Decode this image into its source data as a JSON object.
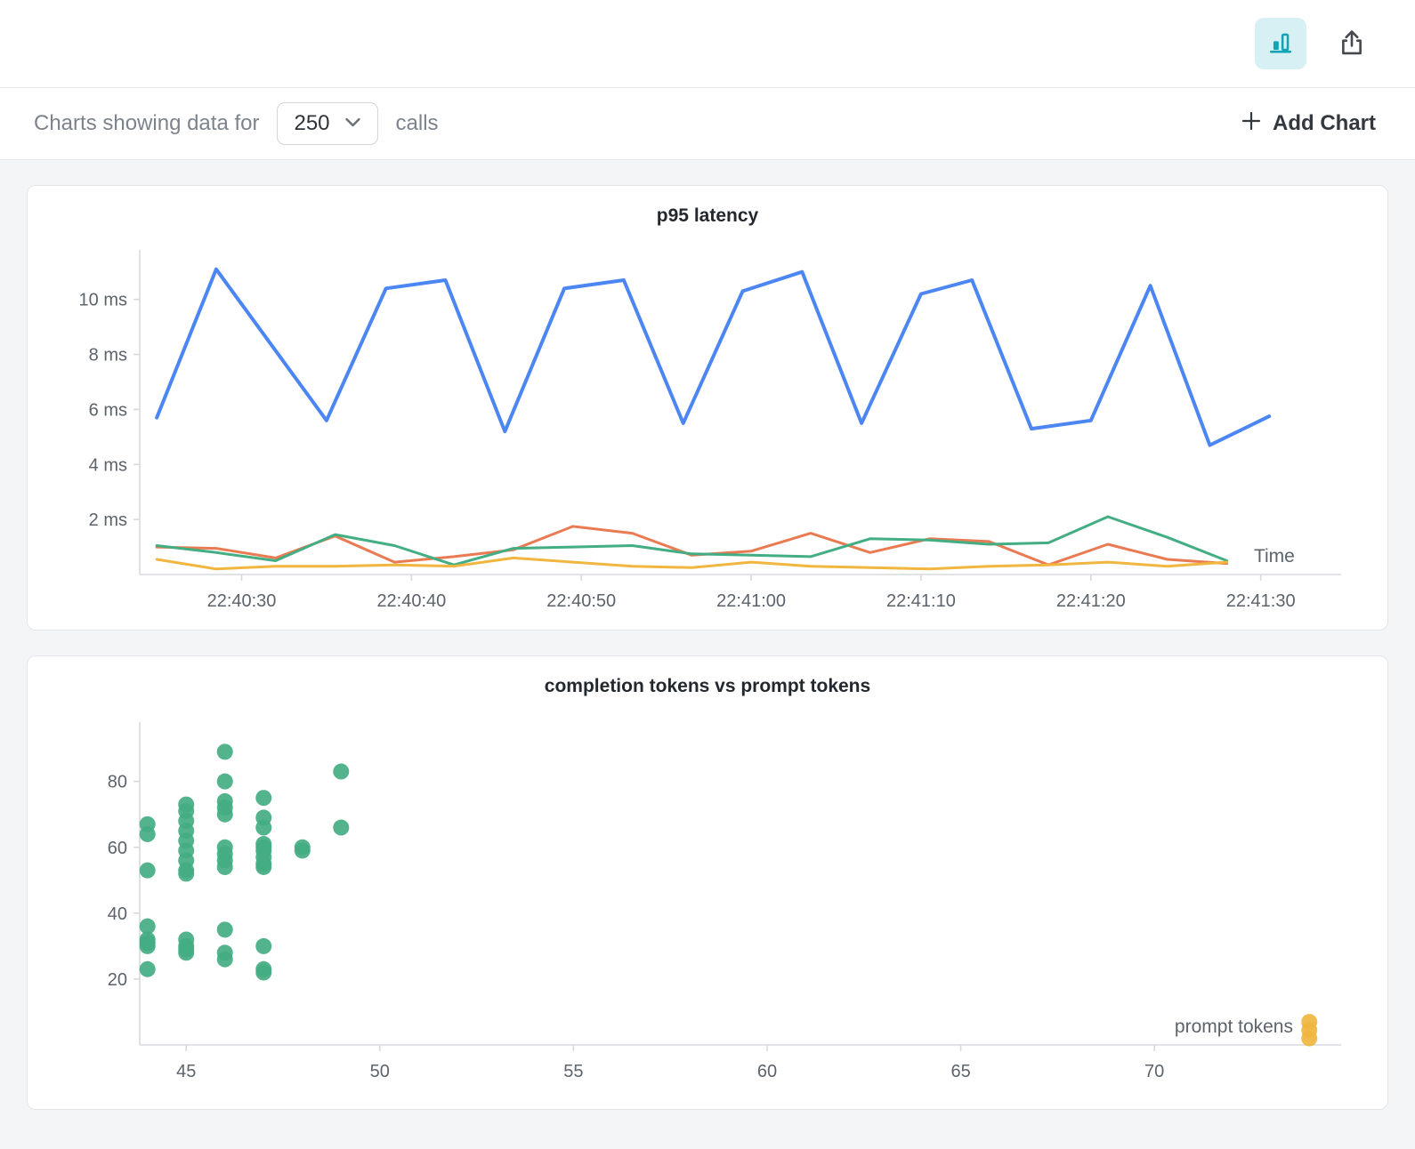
{
  "topbar": {
    "chart_view_button": {
      "icon": "bar-chart-icon",
      "active": true
    },
    "export_button": {
      "icon": "export-icon"
    }
  },
  "toolbar": {
    "prefix_label": "Charts showing data for",
    "calls_dropdown_value": "250",
    "suffix_label": "calls",
    "add_chart_label": "Add Chart"
  },
  "colors": {
    "blue": "#4b86f2",
    "orange": "#e97b52",
    "green": "#43ad83",
    "yellow": "#f0b63f",
    "grid": "#d7dadd",
    "axis_text": "#5c636b",
    "accent_teal": "#12a3b4",
    "accent_teal_bg": "#d7f0f4"
  },
  "chart_data": [
    {
      "type": "line",
      "title": "p95 latency",
      "xlabel": "Time",
      "x_unit": "seconds after 22:40:00",
      "xlim": [
        24,
        94
      ],
      "ylim": [
        0,
        11.8
      ],
      "x_ticks": [
        {
          "v": 30,
          "label": "22:40:30"
        },
        {
          "v": 40,
          "label": "22:40:40"
        },
        {
          "v": 50,
          "label": "22:40:50"
        },
        {
          "v": 60,
          "label": "22:41:00"
        },
        {
          "v": 70,
          "label": "22:41:10"
        },
        {
          "v": 80,
          "label": "22:41:20"
        },
        {
          "v": 90,
          "label": "22:41:30"
        }
      ],
      "y_ticks": [
        {
          "v": 2,
          "label": "2 ms"
        },
        {
          "v": 4,
          "label": "4 ms"
        },
        {
          "v": 6,
          "label": "6 ms"
        },
        {
          "v": 8,
          "label": "8 ms"
        },
        {
          "v": 10,
          "label": "10 ms"
        }
      ],
      "series": [
        {
          "name": "series-orange",
          "color": "#e97b52",
          "width": 3,
          "x": [
            25,
            28.5,
            32,
            35.5,
            39,
            42.5,
            46,
            49.5,
            53,
            56.5,
            60,
            63.5,
            67,
            70.5,
            74,
            77.5,
            81,
            84.5,
            88
          ],
          "y": [
            1.0,
            0.95,
            0.6,
            1.4,
            0.45,
            0.65,
            0.9,
            1.75,
            1.5,
            0.7,
            0.85,
            1.5,
            0.8,
            1.3,
            1.2,
            0.35,
            1.1,
            0.55,
            0.4
          ]
        },
        {
          "name": "series-green",
          "color": "#43ad83",
          "width": 3,
          "x": [
            25,
            28.5,
            32,
            35.5,
            39,
            42.5,
            46,
            49.5,
            53,
            56.5,
            60,
            63.5,
            67,
            70.5,
            74,
            77.5,
            81,
            84.5,
            88
          ],
          "y": [
            1.05,
            0.8,
            0.5,
            1.45,
            1.05,
            0.35,
            0.95,
            1.0,
            1.05,
            0.75,
            0.7,
            0.65,
            1.3,
            1.25,
            1.1,
            1.15,
            2.1,
            1.35,
            0.5
          ]
        },
        {
          "name": "series-yellow",
          "color": "#f0b63f",
          "width": 3,
          "x": [
            25,
            28.5,
            32,
            35.5,
            39,
            42.5,
            46,
            49.5,
            53,
            56.5,
            60,
            63.5,
            67,
            70.5,
            74,
            77.5,
            81,
            84.5,
            88
          ],
          "y": [
            0.55,
            0.2,
            0.3,
            0.3,
            0.35,
            0.3,
            0.6,
            0.45,
            0.3,
            0.25,
            0.45,
            0.3,
            0.25,
            0.2,
            0.3,
            0.35,
            0.45,
            0.3,
            0.45
          ]
        },
        {
          "name": "series-blue",
          "color": "#4b86f2",
          "width": 4,
          "x": [
            25,
            28.5,
            35,
            38.5,
            42,
            45.5,
            49,
            52.5,
            56,
            59.5,
            63,
            66.5,
            70,
            73,
            76.5,
            80,
            83.5,
            87,
            90.5
          ],
          "y": [
            5.7,
            11.1,
            5.6,
            10.4,
            10.7,
            5.2,
            10.4,
            10.7,
            5.5,
            10.3,
            11.0,
            5.5,
            10.2,
            10.7,
            5.3,
            5.6,
            10.5,
            4.7,
            5.75
          ]
        }
      ]
    },
    {
      "type": "scatter",
      "title": "completion tokens vs prompt tokens",
      "xlabel": "prompt tokens",
      "xlim": [
        43.8,
        74.5
      ],
      "ylim": [
        0,
        98
      ],
      "x_ticks": [
        {
          "v": 45,
          "label": "45"
        },
        {
          "v": 50,
          "label": "50"
        },
        {
          "v": 55,
          "label": "55"
        },
        {
          "v": 60,
          "label": "60"
        },
        {
          "v": 65,
          "label": "65"
        },
        {
          "v": 70,
          "label": "70"
        }
      ],
      "y_ticks": [
        {
          "v": 20,
          "label": "20"
        },
        {
          "v": 40,
          "label": "40"
        },
        {
          "v": 60,
          "label": "60"
        },
        {
          "v": 80,
          "label": "80"
        }
      ],
      "series": [
        {
          "name": "completion-tokens",
          "color": "#43ad83",
          "points": [
            [
              44,
              67
            ],
            [
              44,
              64
            ],
            [
              44,
              53
            ],
            [
              44,
              36
            ],
            [
              44,
              32
            ],
            [
              44,
              31
            ],
            [
              44,
              30
            ],
            [
              44,
              23
            ],
            [
              45,
              73
            ],
            [
              45,
              71
            ],
            [
              45,
              68
            ],
            [
              45,
              65
            ],
            [
              45,
              62
            ],
            [
              45,
              59
            ],
            [
              45,
              56
            ],
            [
              45,
              53
            ],
            [
              45,
              52
            ],
            [
              45,
              32
            ],
            [
              45,
              30
            ],
            [
              45,
              29
            ],
            [
              45,
              28
            ],
            [
              46,
              89
            ],
            [
              46,
              80
            ],
            [
              46,
              74
            ],
            [
              46,
              72
            ],
            [
              46,
              70
            ],
            [
              46,
              60
            ],
            [
              46,
              58
            ],
            [
              46,
              56
            ],
            [
              46,
              54
            ],
            [
              46,
              35
            ],
            [
              46,
              28
            ],
            [
              46,
              26
            ],
            [
              47,
              75
            ],
            [
              47,
              69
            ],
            [
              47,
              66
            ],
            [
              47,
              61
            ],
            [
              47,
              60
            ],
            [
              47,
              59
            ],
            [
              47,
              57
            ],
            [
              47,
              55
            ],
            [
              47,
              54
            ],
            [
              47,
              30
            ],
            [
              47,
              23
            ],
            [
              47,
              22
            ],
            [
              48,
              60
            ],
            [
              48,
              59
            ],
            [
              49,
              83
            ],
            [
              49,
              66
            ]
          ]
        },
        {
          "name": "prompt-tokens",
          "color": "#f0b63f",
          "points": [
            [
              74,
              7
            ],
            [
              74,
              4.5
            ],
            [
              74,
              2
            ]
          ]
        }
      ]
    }
  ]
}
